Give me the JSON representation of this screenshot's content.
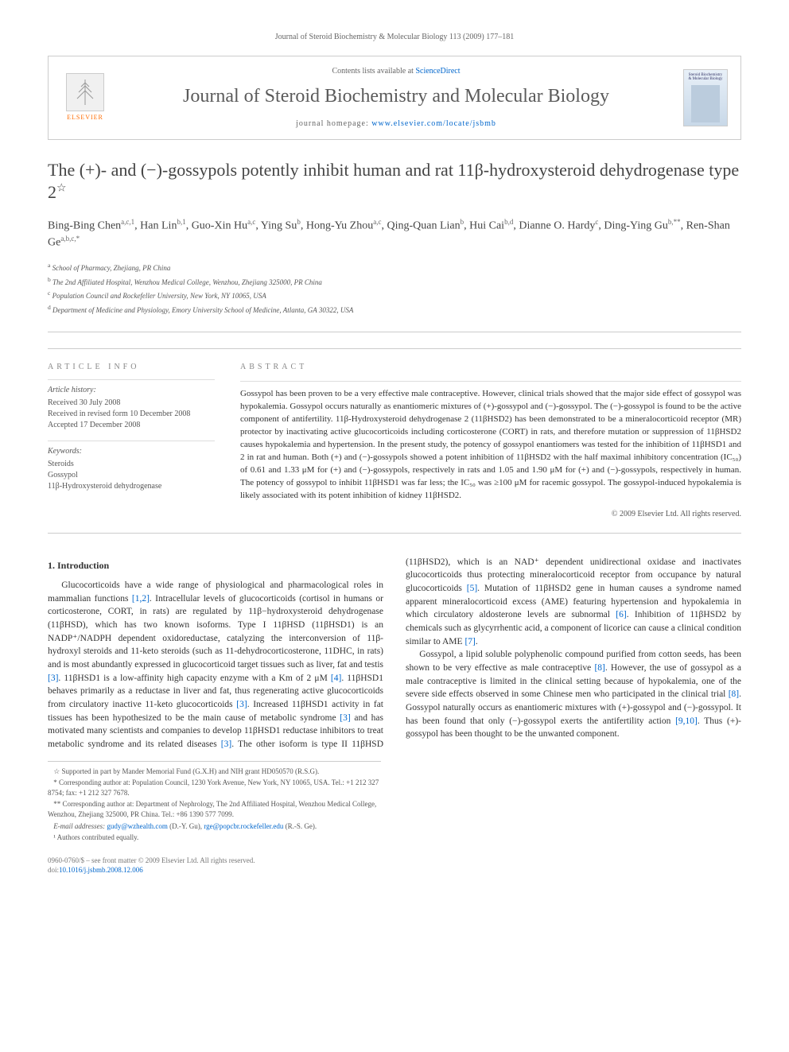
{
  "running_header": "Journal of Steroid Biochemistry & Molecular Biology 113 (2009) 177–181",
  "header": {
    "contents_prefix": "Contents lists available at ",
    "contents_link": "ScienceDirect",
    "journal_name": "Journal of Steroid Biochemistry and Molecular Biology",
    "homepage_prefix": "journal homepage: ",
    "homepage_url": "www.elsevier.com/locate/jsbmb",
    "publisher": "ELSEVIER",
    "cover_title": "Steroid Biochemistry & Molecular Biology"
  },
  "title_main": "The (+)- and (−)-gossypols potently inhibit human and rat 11β-hydroxysteroid dehydrogenase type 2",
  "title_note_mark": "☆",
  "authors_html": "Bing-Bing Chen<sup>a,c,1</sup>, Han Lin<sup>b,1</sup>, Guo-Xin Hu<sup>a,c</sup>, Ying Su<sup>b</sup>, Hong-Yu Zhou<sup>a,c</sup>, Qing-Quan Lian<sup>b</sup>, Hui Cai<sup>b,d</sup>, Dianne O. Hardy<sup>c</sup>, Ding-Ying Gu<sup>b,**</sup>, Ren-Shan Ge<sup>a,b,c,*</sup>",
  "affiliations": [
    {
      "mark": "a",
      "text": "School of Pharmacy, Zhejiang, PR China"
    },
    {
      "mark": "b",
      "text": "The 2nd Affiliated Hospital, Wenzhou Medical College, Wenzhou, Zhejiang 325000, PR China"
    },
    {
      "mark": "c",
      "text": "Population Council and Rockefeller University, New York, NY 10065, USA"
    },
    {
      "mark": "d",
      "text": "Department of Medicine and Physiology, Emory University School of Medicine, Atlanta, GA 30322, USA"
    }
  ],
  "article_info": {
    "heading": "article info",
    "history_label": "Article history:",
    "history": [
      "Received 30 July 2008",
      "Received in revised form 10 December 2008",
      "Accepted 17 December 2008"
    ],
    "keywords_label": "Keywords:",
    "keywords": [
      "Steroids",
      "Gossypol",
      "11β-Hydroxysteroid dehydrogenase"
    ]
  },
  "abstract": {
    "heading": "abstract",
    "text": "Gossypol has been proven to be a very effective male contraceptive. However, clinical trials showed that the major side effect of gossypol was hypokalemia. Gossypol occurs naturally as enantiomeric mixtures of (+)-gossypol and (−)-gossypol. The (−)-gossypol is found to be the active component of antifertility. 11β-Hydroxysteroid dehydrogenase 2 (11βHSD2) has been demonstrated to be a mineralocorticoid receptor (MR) protector by inactivating active glucocorticoids including corticosterone (CORT) in rats, and therefore mutation or suppression of 11βHSD2 causes hypokalemia and hypertension. In the present study, the potency of gossypol enantiomers was tested for the inhibition of 11βHSD1 and 2 in rat and human. Both (+) and (−)-gossypols showed a potent inhibition of 11βHSD2 with the half maximal inhibitory concentration (IC₅₀) of 0.61 and 1.33 μM for (+) and (−)-gossypols, respectively in rats and 1.05 and 1.90 μM for (+) and (−)-gossypols, respectively in human. The potency of gossypol to inhibit 11βHSD1 was far less; the IC₅₀ was ≥100 μM for racemic gossypol. The gossypol-induced hypokalemia is likely associated with its potent inhibition of kidney 11βHSD2.",
    "copyright": "© 2009 Elsevier Ltd. All rights reserved."
  },
  "sections": {
    "intro_heading": "1.  Introduction",
    "intro_p1_pre": "Glucocorticoids have a wide range of physiological and pharmacological roles in mammalian functions ",
    "intro_p1_ref1": "[1,2]",
    "intro_p1_mid1": ". Intracellular levels of glucocorticoids (cortisol in humans or corticosterone, CORT, in rats) are regulated by 11β−hydroxysteroid dehydrogenase (11βHSD), which has two known isoforms. Type I 11βHSD (11βHSD1) is an NADP⁺/NADPH dependent oxidoreductase, catalyzing the interconversion of 11β-hydroxyl steroids and 11-keto steroids (such as 11-dehydrocorticosterone, 11DHC, in rats) and is most abundantly expressed in glucocorticoid target tissues such as liver, fat and testis ",
    "intro_p1_ref2": "[3]",
    "intro_p1_mid2": ". 11βHSD1 is a low-affinity high capacity enzyme with a Km of 2 μM ",
    "intro_p1_ref3": "[4]",
    "intro_p1_mid3": ". 11βHSD1 behaves primarily as a reductase in liver and fat, thus regenerating active glucocorticoids from circulatory inactive 11-keto glucocorticoids ",
    "intro_p1_ref4": "[3]",
    "intro_p1_mid4": ". Increased 11βHSD1 activity in fat tissues has been hypothesized to be the main cause of metabolic syndrome ",
    "intro_p1_ref5": "[3]",
    "intro_p1_mid5": " and has motivated many scientists and companies to develop 11βHSD1 reductase inhibitors to treat metabolic syndrome and its related diseases ",
    "intro_p1_ref6": "[3]",
    "intro_p1_mid6": ". The other isoform is type II 11βHSD (11βHSD2), which is an NAD⁺ dependent unidirectional oxidase and inactivates glucocorticoids thus protecting mineralocorticoid receptor from occupance by natural glucocorticoids ",
    "intro_p1_ref7": "[5]",
    "intro_p1_mid7": ". Mutation of 11βHSD2 gene in human causes a syndrome named apparent mineralocorticoid excess (AME) featuring hypertension and hypokalemia in which circulatory aldosterone levels are subnormal ",
    "intro_p1_ref8": "[6]",
    "intro_p1_mid8": ". Inhibition of 11βHSD2 by chemicals such as glycyrrhentic acid, a component of licorice can cause a clinical condition similar to AME ",
    "intro_p1_ref9": "[7]",
    "intro_p1_end": ".",
    "intro_p2_pre": "Gossypol, a lipid soluble polyphenolic compound purified from cotton seeds, has been shown to be very effective as male contraceptive ",
    "intro_p2_ref1": "[8]",
    "intro_p2_mid1": ". However, the use of gossypol as a male contraceptive is limited in the clinical setting because of hypokalemia, one of the severe side effects observed in some Chinese men who participated in the clinical trial ",
    "intro_p2_ref2": "[8]",
    "intro_p2_mid2": ". Gossypol naturally occurs as enantiomeric mixtures with (+)-gossypol and (−)-gossypol. It has been found that only (−)-gossypol exerts the antifertility action ",
    "intro_p2_ref3": "[9,10]",
    "intro_p2_end": ". Thus (+)-gossypol has been thought to be the unwanted component."
  },
  "footnotes": {
    "support": "Supported in part by Mander Memorial Fund (G.X.H) and NIH grant HD050570 (R.S.G).",
    "corr1_label": "* Corresponding author at: ",
    "corr1": "Population Council, 1230 York Avenue, New York, NY 10065, USA. Tel.: +1 212 327 8754; fax: +1 212 327 7678.",
    "corr2_label": "** Corresponding author at: ",
    "corr2": "Department of Nephrology, The 2nd Affiliated Hospital, Wenzhou Medical College, Wenzhou, Zhejiang 325000, PR China. Tel.: +86 1390 577 7099.",
    "email_label": "E-mail addresses: ",
    "email1": "gudy@wzhealth.com",
    "email1_suffix": " (D.-Y. Gu), ",
    "email2": "rge@popcbr.rockefeller.edu",
    "email2_suffix": " (R.-S. Ge).",
    "note1": "¹ Authors contributed equally."
  },
  "footer": {
    "left_line1": "0960-0760/$ – see front matter © 2009 Elsevier Ltd. All rights reserved.",
    "left_line2_pre": "doi:",
    "doi": "10.1016/j.jsbmb.2008.12.006"
  },
  "colors": {
    "link": "#0066cc",
    "text": "#333333",
    "muted": "#666666",
    "heading": "#5b5b5b",
    "elsevier_orange": "#ff6b00",
    "border": "#cccccc"
  }
}
